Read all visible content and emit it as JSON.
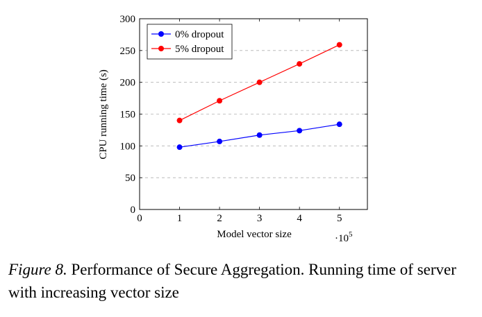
{
  "chart_data": {
    "type": "line",
    "title": "",
    "xlabel": "Model vector size",
    "ylabel": "CPU running time (s)",
    "x_multiplier_label": "·10",
    "x_multiplier_exponent": "5",
    "xlim": [
      0,
      5.7
    ],
    "ylim": [
      0,
      300
    ],
    "xticks": [
      0,
      1,
      2,
      3,
      4,
      5
    ],
    "yticks": [
      0,
      50,
      100,
      150,
      200,
      250,
      300
    ],
    "grid": "horizontal-dashed",
    "legend_position": "top-left",
    "x": [
      1,
      2,
      3,
      4,
      5
    ],
    "series": [
      {
        "name": "0% dropout",
        "color": "#0000ff",
        "values": [
          98,
          107,
          117,
          124,
          134
        ]
      },
      {
        "name": "5% dropout",
        "color": "#ff0000",
        "values": [
          140,
          171,
          200,
          229,
          259
        ]
      }
    ]
  },
  "caption": {
    "figure_label": "Figure 8.",
    "text": " Performance of Secure Aggregation. Running time of server with increasing vector size"
  }
}
